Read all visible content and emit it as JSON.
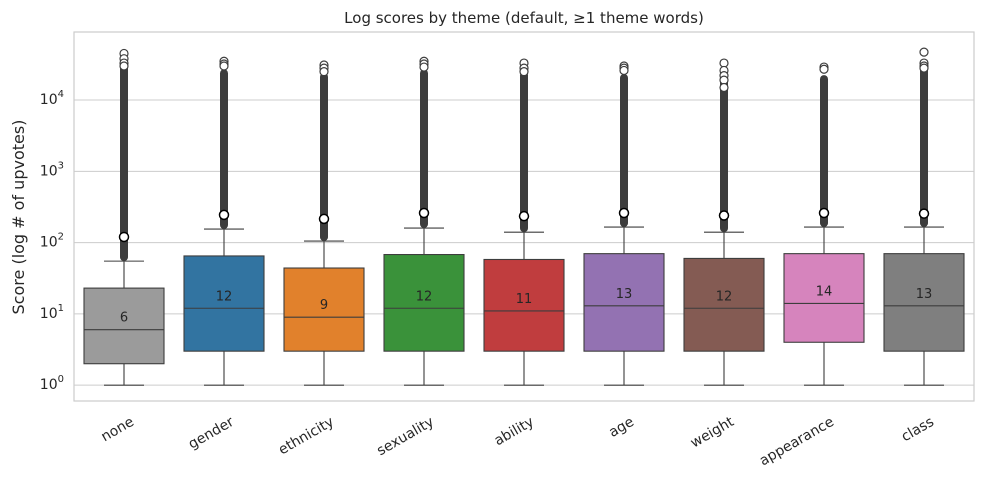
{
  "chart_data": {
    "type": "boxplot",
    "title": "Log scores by theme (default, ≥1 theme words)",
    "xlabel": "",
    "ylabel": "Score (log # of upvotes)",
    "yscale": "log",
    "ylim": [
      0.6,
      90000
    ],
    "yticks": [
      {
        "value": 1,
        "base": "10",
        "exp": "0"
      },
      {
        "value": 10,
        "base": "10",
        "exp": "1"
      },
      {
        "value": 100,
        "base": "10",
        "exp": "2"
      },
      {
        "value": 1000,
        "base": "10",
        "exp": "3"
      },
      {
        "value": 10000,
        "base": "10",
        "exp": "4"
      }
    ],
    "grid": "horizontal",
    "categories": [
      {
        "label": "none",
        "color": "#9b9b9b",
        "q1": 2,
        "median": 6,
        "q3": 23,
        "whisker_low": 1,
        "whisker_high": 55,
        "mean": 120,
        "median_label": "6",
        "outlier_max": 45000,
        "outlier_high_points": [
          45000,
          38000,
          33000,
          30000
        ]
      },
      {
        "label": "gender",
        "color": "#3274a1",
        "q1": 3,
        "median": 12,
        "q3": 65,
        "whisker_low": 1,
        "whisker_high": 155,
        "mean": 245,
        "median_label": "12",
        "outlier_max": 35000,
        "outlier_high_points": [
          35000,
          32000,
          30000
        ]
      },
      {
        "label": "ethnicity",
        "color": "#e1812c",
        "q1": 3,
        "median": 9,
        "q3": 44,
        "whisker_low": 1,
        "whisker_high": 105,
        "mean": 215,
        "median_label": "9",
        "outlier_max": 31000,
        "outlier_high_points": [
          31000,
          28000,
          25000
        ]
      },
      {
        "label": "sexuality",
        "color": "#3a923a",
        "q1": 3,
        "median": 12,
        "q3": 68,
        "whisker_low": 1,
        "whisker_high": 160,
        "mean": 260,
        "median_label": "12",
        "outlier_max": 35000,
        "outlier_high_points": [
          35000,
          32000,
          29000
        ]
      },
      {
        "label": "ability",
        "color": "#c03d3e",
        "q1": 3,
        "median": 11,
        "q3": 58,
        "whisker_low": 1,
        "whisker_high": 140,
        "mean": 235,
        "median_label": "11",
        "outlier_max": 33000,
        "outlier_high_points": [
          33000,
          28000,
          25000
        ]
      },
      {
        "label": "age",
        "color": "#9372b2",
        "q1": 3,
        "median": 13,
        "q3": 70,
        "whisker_low": 1,
        "whisker_high": 165,
        "mean": 260,
        "median_label": "13",
        "outlier_max": 30000,
        "outlier_high_points": [
          30000,
          28000,
          26000
        ]
      },
      {
        "label": "weight",
        "color": "#845b53",
        "q1": 3,
        "median": 12,
        "q3": 60,
        "whisker_low": 1,
        "whisker_high": 140,
        "mean": 240,
        "median_label": "12",
        "outlier_max": 33000,
        "outlier_high_points": [
          33000,
          26000,
          22000,
          19000,
          15000
        ]
      },
      {
        "label": "appearance",
        "color": "#d684bd",
        "q1": 4,
        "median": 14,
        "q3": 70,
        "whisker_low": 1,
        "whisker_high": 165,
        "mean": 260,
        "median_label": "14",
        "outlier_max": 29000,
        "outlier_high_points": [
          29000,
          27000
        ]
      },
      {
        "label": "class",
        "color": "#7f7f7f",
        "q1": 3,
        "median": 13,
        "q3": 70,
        "whisker_low": 1,
        "whisker_high": 165,
        "mean": 255,
        "median_label": "13",
        "outlier_max": 47000,
        "outlier_high_points": [
          47000,
          33000,
          30000,
          28000
        ]
      }
    ]
  }
}
